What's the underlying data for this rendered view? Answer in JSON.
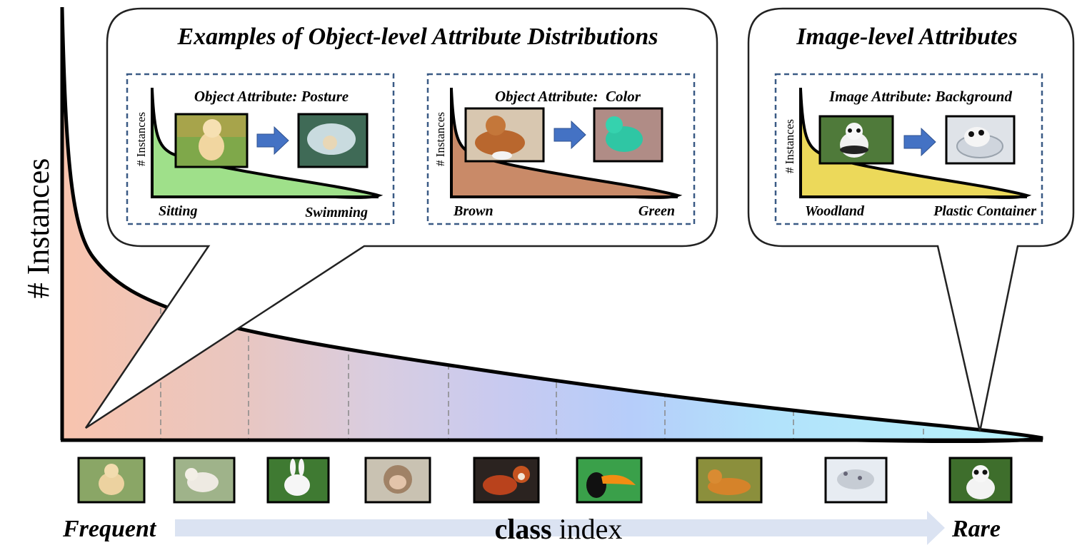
{
  "main_axis": {
    "ylabel": "# Instances",
    "xlabel_bold": "class",
    "xlabel_rest": " index",
    "left_label": "Frequent",
    "right_label": "Rare"
  },
  "object_callout": {
    "title": "Examples of Object-level Attribute Distributions",
    "panels": [
      {
        "title": "Object Attribute: Posture",
        "ylabel": "# Instances",
        "left_label": "Sitting",
        "right_label": "Swimming",
        "fill_color": "#9fe08a",
        "images": [
          "puppy-sitting-photo",
          "dog-swimming-photo"
        ]
      },
      {
        "title": "Object Attribute:  Color",
        "ylabel": "# Instances",
        "left_label": "Brown",
        "right_label": "Green",
        "fill_color": "#c98a68",
        "images": [
          "brown-dog-photo",
          "green-dog-photo"
        ]
      }
    ]
  },
  "image_callout": {
    "title": "Image-level Attributes",
    "panels": [
      {
        "title": "Image Attribute: Background",
        "ylabel": "# Instances",
        "left_label": "Woodland",
        "right_label": "Plastic Container",
        "fill_color": "#ecd95a",
        "images": [
          "panda-woodland-photo",
          "panda-container-photo"
        ]
      }
    ]
  },
  "class_thumbnails": [
    "puppy",
    "lamb",
    "rabbit",
    "macaque",
    "red-panda",
    "toucan",
    "tiger",
    "snow-leopard",
    "panda"
  ],
  "colors": {
    "frequent_fill": "#f8c4ae",
    "rare_fill": "#b8f0fb",
    "callout_border": "#222222",
    "dashed_box": "#3a5a85",
    "arrow_fill": "#4472c4",
    "axis_arrow": "#dbe3f2"
  }
}
